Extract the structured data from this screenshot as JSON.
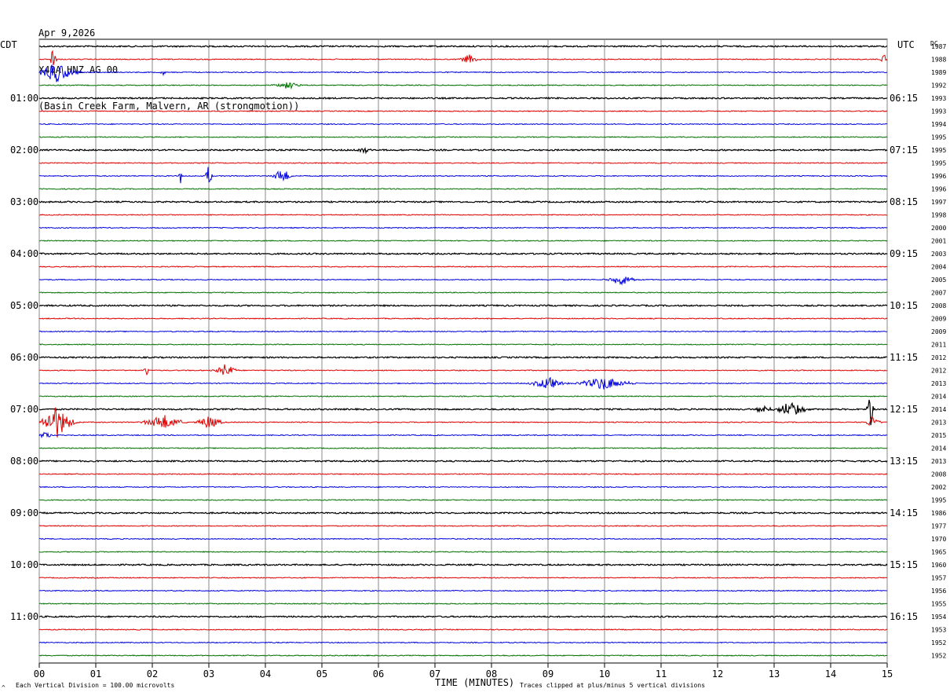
{
  "header": {
    "date": "Apr 9,2026",
    "station": "X40A HNZ AG 00",
    "location": "(Basin Creek Farm, Malvern, AR (strongmotion))"
  },
  "left_axis_label": "CDT",
  "right_axis_label": "UTC",
  "dc_label": "DC",
  "footer": {
    "scale_note": "Each Vertical Division =  100.00 microvolts",
    "x_title": "TIME (MINUTES)",
    "clip_note": "Traces clipped at plus/minus 5 vertical divisions"
  },
  "colors": {
    "trace_cycle": [
      "#000000",
      "#e00000",
      "#0000e0",
      "#007000"
    ],
    "grid": "#888888"
  },
  "chart_data": {
    "type": "line",
    "description_free": true,
    "x_ticks": [
      "00",
      "01",
      "02",
      "03",
      "04",
      "05",
      "06",
      "07",
      "08",
      "09",
      "10",
      "11",
      "12",
      "13",
      "14",
      "15"
    ],
    "xlim": [
      0,
      15
    ],
    "left_ticks": [
      "01:00",
      "02:00",
      "03:00",
      "04:00",
      "05:00",
      "06:00",
      "07:00",
      "08:00",
      "09:00",
      "10:00",
      "11:00"
    ],
    "right_ticks": [
      "06:15",
      "07:15",
      "08:15",
      "09:15",
      "10:15",
      "11:15",
      "12:15",
      "13:15",
      "14:15",
      "15:15",
      "16:15"
    ],
    "dc_values": [
      "1987",
      "1988",
      "1989",
      "1992",
      "1993",
      "1993",
      "1994",
      "1995",
      "1995",
      "1995",
      "1996",
      "1996",
      "1997",
      "1998",
      "2000",
      "2001",
      "2003",
      "2004",
      "2005",
      "2007",
      "2008",
      "2009",
      "2009",
      "2011",
      "2012",
      "2012",
      "2013",
      "2014",
      "2014",
      "2013",
      "2015",
      "2014",
      "2013",
      "2008",
      "2002",
      "1995",
      "1986",
      "1977",
      "1970",
      "1965",
      "1960",
      "1957",
      "1956",
      "1955",
      "1954",
      "1953",
      "1952",
      "1952"
    ],
    "events": [
      {
        "trace": 1,
        "x": 0.25,
        "amp": 25,
        "width": 0.08
      },
      {
        "trace": 1,
        "x": 7.6,
        "amp": 6,
        "width": 0.3
      },
      {
        "trace": 1,
        "x": 14.95,
        "amp": 10,
        "width": 0.1
      },
      {
        "trace": 2,
        "x": 0.3,
        "amp": 14,
        "width": 0.6
      },
      {
        "trace": 2,
        "x": 2.2,
        "amp": 6,
        "width": 0.1
      },
      {
        "trace": 3,
        "x": 4.4,
        "amp": 5,
        "width": 0.4
      },
      {
        "trace": 8,
        "x": 5.75,
        "amp": 4,
        "width": 0.3
      },
      {
        "trace": 10,
        "x": 2.5,
        "amp": 12,
        "width": 0.05
      },
      {
        "trace": 10,
        "x": 3.0,
        "amp": 16,
        "width": 0.1
      },
      {
        "trace": 10,
        "x": 4.3,
        "amp": 10,
        "width": 0.3
      },
      {
        "trace": 18,
        "x": 10.3,
        "amp": 8,
        "width": 0.4
      },
      {
        "trace": 25,
        "x": 3.3,
        "amp": 9,
        "width": 0.3
      },
      {
        "trace": 25,
        "x": 1.9,
        "amp": 6,
        "width": 0.1
      },
      {
        "trace": 26,
        "x": 9.0,
        "amp": 8,
        "width": 0.5
      },
      {
        "trace": 26,
        "x": 10.0,
        "amp": 9,
        "width": 0.8
      },
      {
        "trace": 28,
        "x": 13.3,
        "amp": 10,
        "width": 0.5
      },
      {
        "trace": 28,
        "x": 12.8,
        "amp": 5,
        "width": 0.3
      },
      {
        "trace": 28,
        "x": 14.7,
        "amp": 55,
        "width": 0.08
      },
      {
        "trace": 29,
        "x": 0.3,
        "amp": 22,
        "width": 0.5
      },
      {
        "trace": 29,
        "x": 2.2,
        "amp": 10,
        "width": 0.6
      },
      {
        "trace": 29,
        "x": 3.0,
        "amp": 9,
        "width": 0.4
      },
      {
        "trace": 29,
        "x": 14.75,
        "amp": 12,
        "width": 0.2
      },
      {
        "trace": 30,
        "x": 0.1,
        "amp": 6,
        "width": 0.2
      }
    ]
  }
}
